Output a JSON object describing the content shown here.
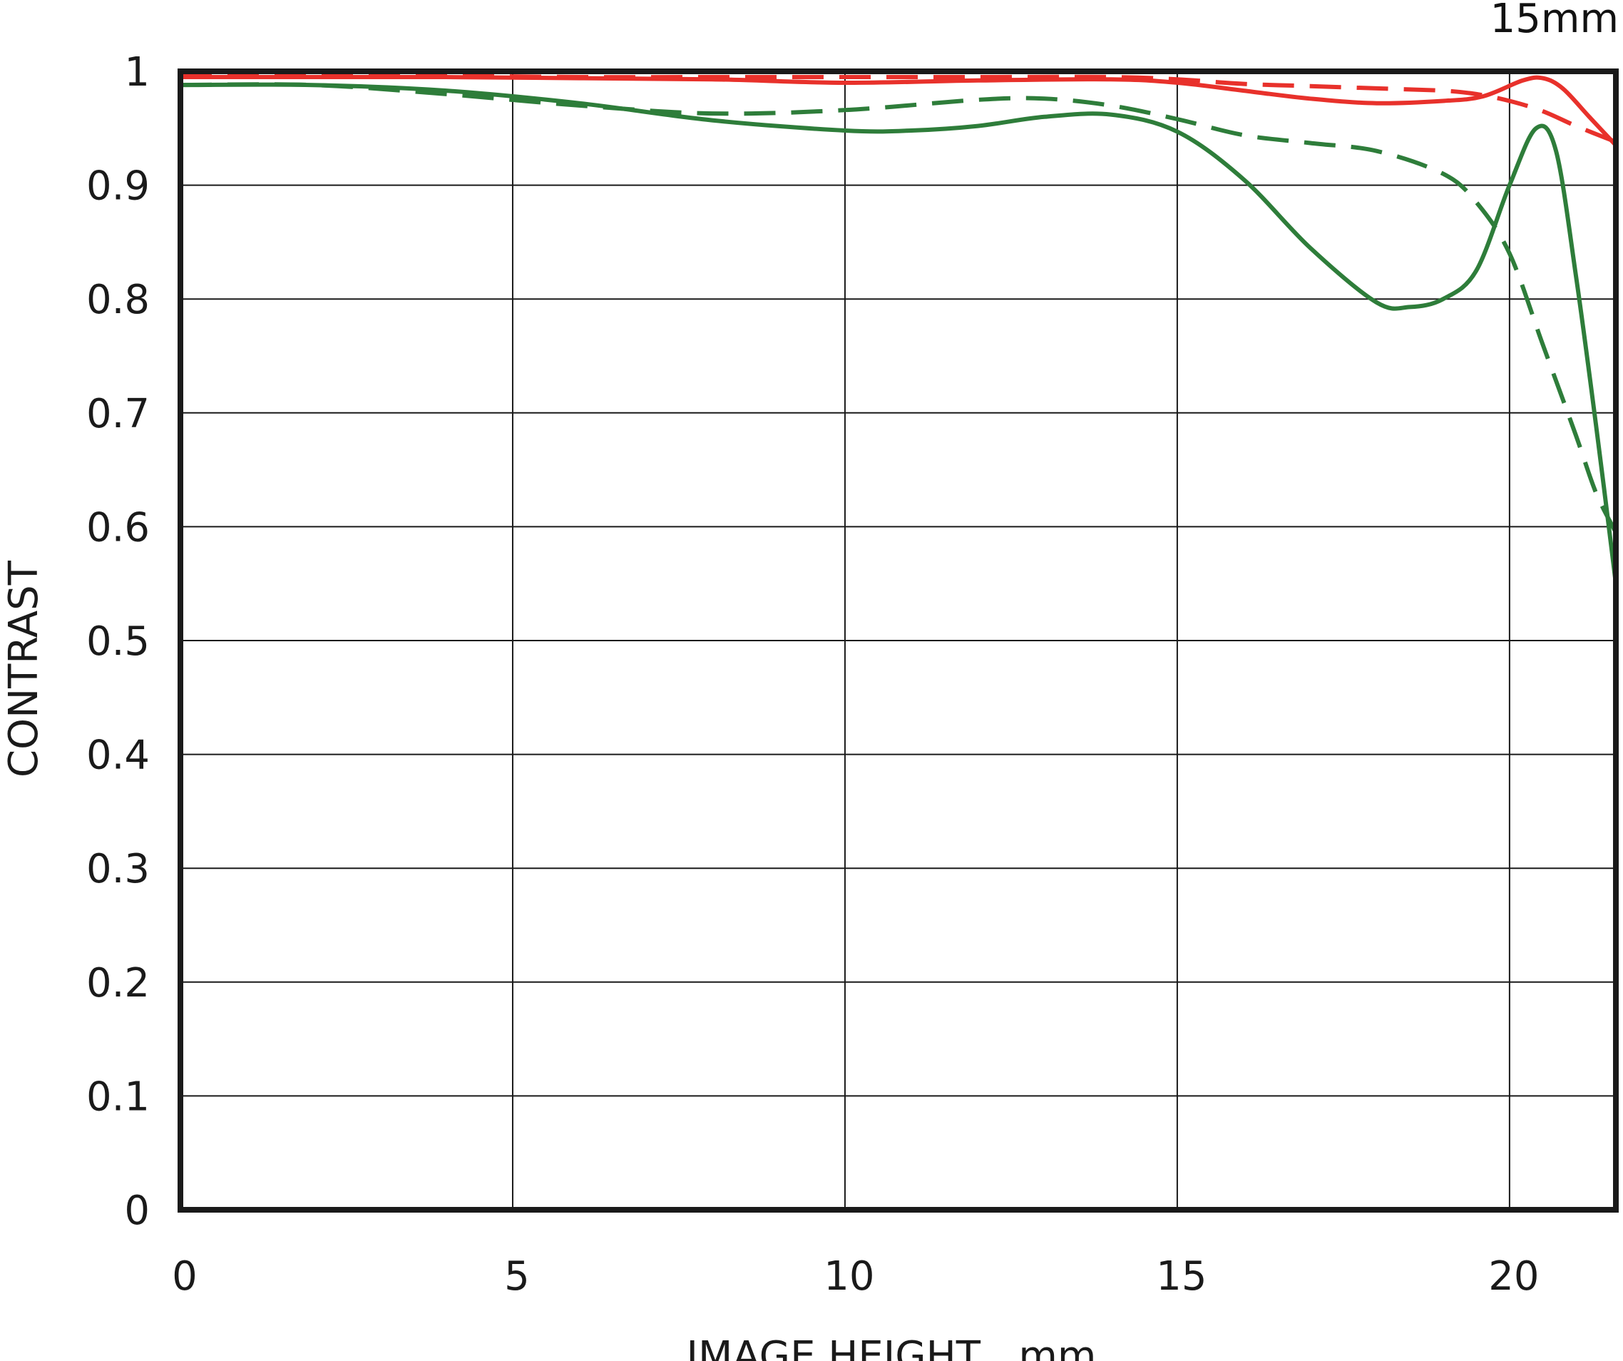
{
  "chart_data": {
    "type": "line",
    "title": "15mm",
    "xlabel": "IMAGE HEIGHT   mm",
    "ylabel": "CONTRAST",
    "xlim": [
      0,
      21.6
    ],
    "ylim": [
      0,
      1
    ],
    "xticks": [
      "0",
      "5",
      "10",
      "15",
      "20"
    ],
    "xtick_values": [
      0,
      5,
      10,
      15,
      20
    ],
    "yticks": [
      "0",
      "0.1",
      "0.2",
      "0.3",
      "0.4",
      "0.5",
      "0.6",
      "0.7",
      "0.8",
      "0.9",
      "1"
    ],
    "ytick_values": [
      0,
      0.1,
      0.2,
      0.3,
      0.4,
      0.5,
      0.6,
      0.7,
      0.8,
      0.9,
      1.0
    ],
    "grid": true,
    "legend": "none",
    "series": [
      {
        "color": "#e8312b",
        "dash": "solid",
        "points": [
          [
            0,
            0.995
          ],
          [
            2,
            0.995
          ],
          [
            4,
            0.995
          ],
          [
            6,
            0.994
          ],
          [
            8,
            0.993
          ],
          [
            10,
            0.99
          ],
          [
            12,
            0.992
          ],
          [
            14,
            0.993
          ],
          [
            15,
            0.99
          ],
          [
            16,
            0.983
          ],
          [
            17,
            0.976
          ],
          [
            18,
            0.972
          ],
          [
            19,
            0.974
          ],
          [
            19.6,
            0.978
          ],
          [
            20.2,
            0.992
          ],
          [
            20.5,
            0.994
          ],
          [
            20.8,
            0.985
          ],
          [
            21.2,
            0.96
          ],
          [
            21.6,
            0.935
          ]
        ]
      },
      {
        "color": "#e8312b",
        "dash": "dashed",
        "points": [
          [
            0,
            0.997
          ],
          [
            2,
            0.996
          ],
          [
            4,
            0.996
          ],
          [
            6,
            0.995
          ],
          [
            8,
            0.995
          ],
          [
            10,
            0.995
          ],
          [
            12,
            0.995
          ],
          [
            14,
            0.995
          ],
          [
            15,
            0.993
          ],
          [
            16,
            0.989
          ],
          [
            17,
            0.987
          ],
          [
            18,
            0.985
          ],
          [
            19,
            0.983
          ],
          [
            19.5,
            0.98
          ],
          [
            20,
            0.974
          ],
          [
            20.5,
            0.965
          ],
          [
            21,
            0.952
          ],
          [
            21.6,
            0.938
          ]
        ]
      },
      {
        "color": "#2e7d3a",
        "dash": "solid",
        "points": [
          [
            0,
            0.988
          ],
          [
            2,
            0.988
          ],
          [
            4,
            0.983
          ],
          [
            6,
            0.972
          ],
          [
            8,
            0.957
          ],
          [
            10,
            0.948
          ],
          [
            11,
            0.948
          ],
          [
            12,
            0.952
          ],
          [
            13,
            0.96
          ],
          [
            14,
            0.962
          ],
          [
            15,
            0.947
          ],
          [
            16,
            0.905
          ],
          [
            17,
            0.845
          ],
          [
            18,
            0.797
          ],
          [
            18.5,
            0.793
          ],
          [
            19,
            0.8
          ],
          [
            19.5,
            0.825
          ],
          [
            20,
            0.9
          ],
          [
            20.4,
            0.95
          ],
          [
            20.7,
            0.93
          ],
          [
            21,
            0.82
          ],
          [
            21.3,
            0.69
          ],
          [
            21.6,
            0.55
          ]
        ]
      },
      {
        "color": "#2e7d3a",
        "dash": "dashed",
        "points": [
          [
            0,
            0.988
          ],
          [
            2,
            0.988
          ],
          [
            4,
            0.98
          ],
          [
            6,
            0.97
          ],
          [
            8,
            0.963
          ],
          [
            10,
            0.966
          ],
          [
            12,
            0.975
          ],
          [
            13,
            0.976
          ],
          [
            14,
            0.97
          ],
          [
            15,
            0.958
          ],
          [
            16,
            0.944
          ],
          [
            17,
            0.937
          ],
          [
            18,
            0.93
          ],
          [
            19,
            0.91
          ],
          [
            19.5,
            0.885
          ],
          [
            20,
            0.84
          ],
          [
            20.5,
            0.76
          ],
          [
            21,
            0.68
          ],
          [
            21.3,
            0.63
          ],
          [
            21.6,
            0.595
          ]
        ]
      }
    ]
  }
}
